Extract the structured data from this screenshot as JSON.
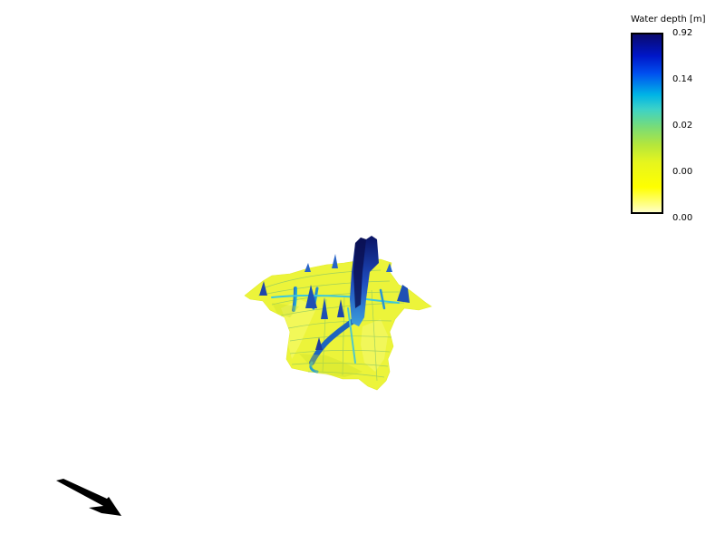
{
  "legend": {
    "title": "Water depth [m]",
    "ticks": [
      "0.92",
      "0.14",
      "0.02",
      "0.00",
      "0.00"
    ],
    "colors": {
      "max": "#0a0a6e",
      "high": "#0050f0",
      "mid": "#00b4e6",
      "low": "#b4e63c",
      "min": "#ffff00"
    }
  },
  "scene": {
    "surface_color": "#f0f03c",
    "channel_color": "#00b4e6",
    "deep_color": "#0a1e8c"
  },
  "compass": {
    "icon": "direction-arrow-icon",
    "color": "#000000"
  }
}
